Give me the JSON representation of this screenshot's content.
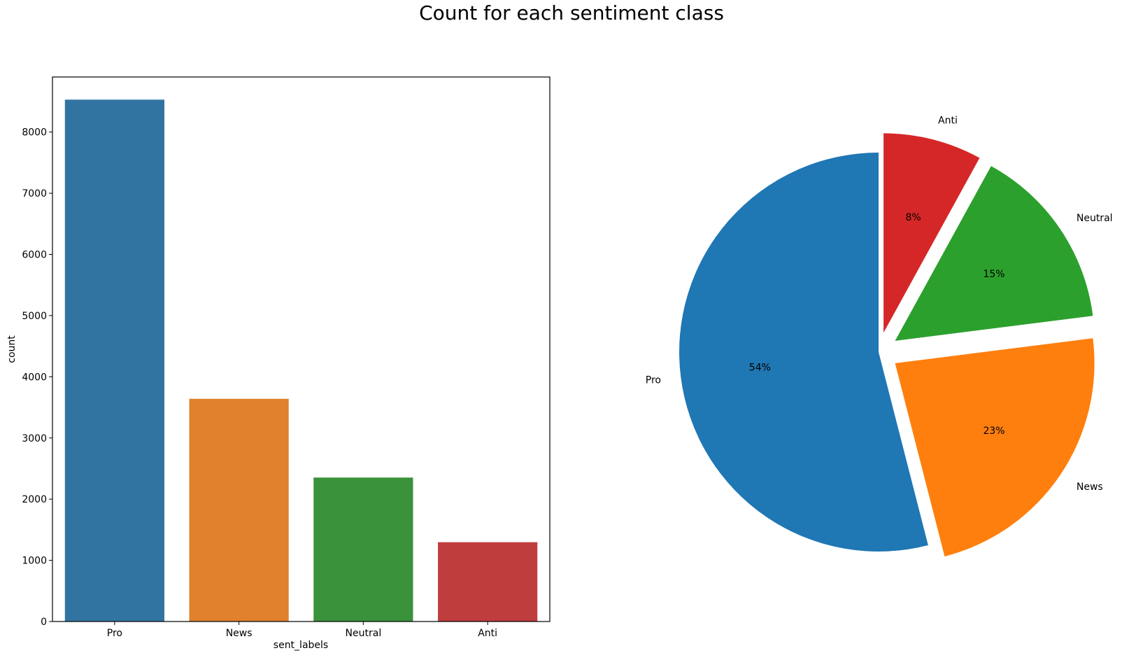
{
  "figure": {
    "title": "Count for each sentiment class"
  },
  "chart_data": [
    {
      "type": "bar",
      "xlabel": "sent_labels",
      "ylabel": "count",
      "categories": [
        "Pro",
        "News",
        "Neutral",
        "Anti"
      ],
      "values": [
        8530,
        3640,
        2353,
        1296
      ],
      "colors": [
        "#3274a1",
        "#e1812c",
        "#3a923a",
        "#c03d3e"
      ],
      "ylim": [
        0,
        8900
      ],
      "yticks": [
        0,
        1000,
        2000,
        3000,
        4000,
        5000,
        6000,
        7000,
        8000
      ],
      "grid": false
    },
    {
      "type": "pie",
      "labels": [
        "Pro",
        "News",
        "Neutral",
        "Anti"
      ],
      "values": [
        54,
        23,
        15,
        8
      ],
      "autopct": [
        "54%",
        "23%",
        "15%",
        "8%"
      ],
      "colors": [
        "#1f77b4",
        "#ff7f0e",
        "#2ca02c",
        "#d62728"
      ],
      "explode": [
        0,
        0.1,
        0.1,
        0.1
      ],
      "startangle": 90
    }
  ]
}
